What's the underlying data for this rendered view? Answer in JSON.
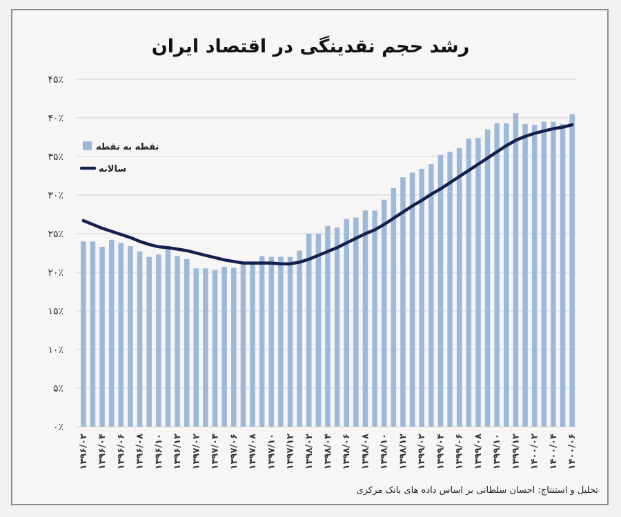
{
  "chart_data": {
    "type": "bar",
    "title": "رشد حجم نقدینگی در اقتصاد ایران",
    "ylim": [
      0,
      45
    ],
    "yticks": [
      "۰٪",
      "۵٪",
      "۱۰٪",
      "۱۵٪",
      "۲۰٪",
      "۲۵٪",
      "۳۰٪",
      "۳۵٪",
      "۴۰٪",
      "۴۵٪"
    ],
    "grid": "horizontal",
    "legend_placement": "top-left",
    "xtick_labels": [
      "۱۳۹۶/۰۲",
      "۱۳۹۶/۰۴",
      "۱۳۹۶/۰۶",
      "۱۳۹۶/۰۸",
      "۱۳۹۶/۱۰",
      "۱۳۹۶/۱۲",
      "۱۳۹۷/۰۲",
      "۱۳۹۷/۰۴",
      "۱۳۹۷/۰۶",
      "۱۳۹۷/۰۸",
      "۱۳۹۷/۱۰",
      "۱۳۹۷/۱۲",
      "۱۳۹۸/۰۲",
      "۱۳۹۸/۰۴",
      "۱۳۹۸/۰۶",
      "۱۳۹۸/۰۸",
      "۱۳۹۸/۱۰",
      "۱۳۹۸/۱۲",
      "۱۳۹۹/۰۲",
      "۱۳۹۹/۰۴",
      "۱۳۹۹/۰۶",
      "۱۳۹۹/۰۸",
      "۱۳۹۹/۱۰",
      "۱۳۹۹/۱۲",
      "۱۴۰۰/۰۲",
      "۱۴۰۰/۰۴",
      "۱۴۰۰/۰۶"
    ],
    "series": [
      {
        "name": "نقطه به نقطه",
        "type": "bar",
        "color": "#9db9da",
        "values": [
          24.0,
          24.0,
          23.3,
          24.2,
          23.8,
          23.4,
          22.7,
          22.0,
          22.3,
          23.1,
          22.1,
          21.7,
          20.5,
          20.5,
          20.3,
          20.7,
          20.6,
          21.0,
          21.4,
          22.1,
          22.0,
          22.0,
          22.0,
          22.8,
          25.0,
          25.0,
          26.0,
          25.8,
          26.9,
          27.1,
          28.0,
          28.0,
          29.4,
          30.9,
          32.3,
          32.9,
          33.4,
          34.0,
          35.2,
          35.6,
          36.1,
          37.3,
          37.4,
          38.5,
          39.3,
          39.3,
          40.6,
          39.2,
          39.1,
          39.5,
          39.5,
          39.2,
          40.5
        ]
      },
      {
        "name": "سالانه",
        "type": "line",
        "color": "#13204d",
        "values": [
          26.7,
          26.2,
          25.7,
          25.3,
          24.9,
          24.5,
          24.0,
          23.6,
          23.3,
          23.2,
          23.0,
          22.8,
          22.5,
          22.2,
          21.9,
          21.6,
          21.4,
          21.2,
          21.2,
          21.2,
          21.2,
          21.1,
          21.1,
          21.3,
          21.7,
          22.2,
          22.7,
          23.2,
          23.8,
          24.4,
          25.0,
          25.5,
          26.2,
          27.0,
          27.8,
          28.6,
          29.3,
          30.1,
          30.8,
          31.6,
          32.4,
          33.2,
          34.0,
          34.8,
          35.6,
          36.4,
          37.1,
          37.6,
          38.0,
          38.3,
          38.6,
          38.8,
          39.1
        ]
      }
    ]
  },
  "credit": "تحلیل و استنتاج: احسان سلطانی بر اساس داده های بانک مرکزی"
}
